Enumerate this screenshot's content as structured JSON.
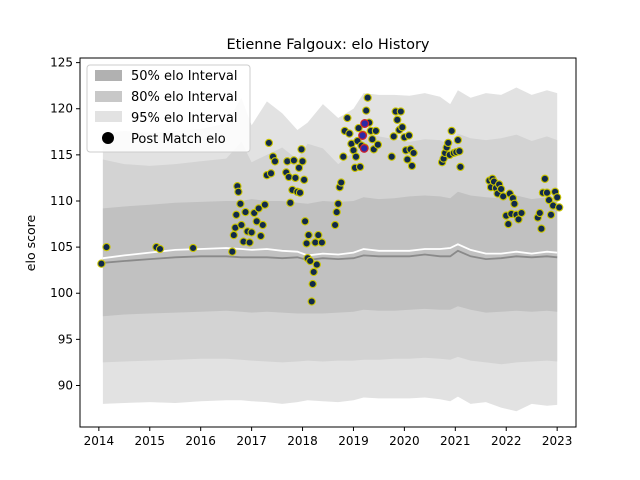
{
  "chart_data": {
    "type": "scatter",
    "title": "Etienne Falgoux: elo History",
    "xlabel": "",
    "ylabel": "elo score",
    "xlim": [
      2013.63,
      2023.37
    ],
    "ylim": [
      85.5,
      125.5
    ],
    "x_ticks": [
      2014,
      2015,
      2016,
      2017,
      2018,
      2019,
      2020,
      2021,
      2022,
      2023
    ],
    "y_ticks": [
      90,
      95,
      100,
      105,
      110,
      115,
      120,
      125
    ],
    "grid": false,
    "legend_position": "top-left",
    "legend": [
      {
        "label": "50% elo Interval",
        "swatch": "#b1b1b1"
      },
      {
        "label": "80% elo Interval",
        "swatch": "#c8c8c8"
      },
      {
        "label": "95% elo Interval",
        "swatch": "#e2e2e2"
      },
      {
        "label": "Post Match elo",
        "swatch": "#000000"
      }
    ],
    "colors": {
      "band95": "#e2e2e2",
      "band80": "#d3d3d3",
      "band50": "#c1c1c1",
      "median_line": "#8a8a8a",
      "mean_line": "#ffffff",
      "point_fill": "#112a4a",
      "point_edge": "#c9c400",
      "highlight_fill": "#2a2aa8",
      "highlight_edge": "#d0202a"
    },
    "bands": {
      "x": [
        2014.08,
        2014.5,
        2015.0,
        2015.5,
        2016.0,
        2016.5,
        2016.8,
        2017.0,
        2017.3,
        2017.6,
        2017.9,
        2018.1,
        2018.4,
        2018.7,
        2019.0,
        2019.2,
        2019.5,
        2019.8,
        2020.1,
        2020.4,
        2020.7,
        2020.9,
        2021.05,
        2021.3,
        2021.6,
        2021.9,
        2022.2,
        2022.5,
        2022.8,
        2023.0
      ],
      "p95_hi": [
        117.3,
        117.6,
        117.4,
        117.6,
        117.8,
        118.4,
        121.2,
        118.2,
        120.8,
        119.5,
        117.7,
        118.5,
        120.5,
        119.0,
        120.0,
        121.7,
        121.5,
        121.5,
        121.4,
        121.7,
        121.3,
        120.5,
        122.0,
        121.2,
        121.7,
        121.5,
        122.3,
        121.5,
        122.0,
        121.7
      ],
      "p80_hi": [
        114.5,
        114.0,
        113.8,
        114.0,
        114.3,
        114.6,
        116.4,
        114.2,
        115.0,
        115.8,
        114.5,
        116.2,
        115.7,
        114.0,
        115.3,
        117.4,
        117.0,
        116.7,
        116.4,
        116.7,
        116.6,
        116.0,
        117.3,
        116.8,
        116.6,
        116.8,
        117.2,
        116.5,
        117.0,
        116.6
      ],
      "p50_hi": [
        109.2,
        109.4,
        109.6,
        109.8,
        109.9,
        110.0,
        110.0,
        110.2,
        110.0,
        110.0,
        109.8,
        109.7,
        110.0,
        109.9,
        110.0,
        110.4,
        110.2,
        110.3,
        110.5,
        110.6,
        110.5,
        110.3,
        111.0,
        110.6,
        110.4,
        110.3,
        110.6,
        110.2,
        110.4,
        110.3
      ],
      "median": [
        103.3,
        103.5,
        103.7,
        103.9,
        104.0,
        104.0,
        103.9,
        103.9,
        103.9,
        103.8,
        103.9,
        103.6,
        103.8,
        103.7,
        103.8,
        104.1,
        104.0,
        104.0,
        104.0,
        104.2,
        104.0,
        104.0,
        104.6,
        104.0,
        103.7,
        103.8,
        104.0,
        103.9,
        104.0,
        103.9
      ],
      "mean": [
        103.8,
        104.1,
        104.4,
        104.7,
        104.8,
        104.9,
        104.8,
        104.7,
        104.8,
        104.6,
        104.5,
        104.1,
        104.3,
        104.2,
        104.4,
        104.8,
        104.6,
        104.6,
        104.6,
        104.8,
        104.8,
        104.9,
        105.3,
        104.7,
        104.3,
        104.3,
        104.5,
        104.3,
        104.5,
        104.4
      ],
      "p50_lo": [
        97.5,
        97.7,
        97.8,
        97.9,
        98.0,
        98.1,
        98.0,
        97.9,
        98.0,
        97.9,
        97.8,
        97.8,
        97.8,
        97.9,
        98.0,
        98.2,
        98.1,
        98.1,
        98.2,
        98.3,
        98.2,
        98.2,
        98.6,
        98.2,
        97.9,
        98.0,
        98.1,
        98.0,
        98.1,
        98.0
      ],
      "p80_lo": [
        92.5,
        92.6,
        92.7,
        92.8,
        92.9,
        92.9,
        92.8,
        92.7,
        92.6,
        92.5,
        92.6,
        92.7,
        92.6,
        92.7,
        92.7,
        92.8,
        92.8,
        92.9,
        92.9,
        93.0,
        92.9,
        92.8,
        93.1,
        92.7,
        92.5,
        92.3,
        92.5,
        92.6,
        92.7,
        92.6
      ],
      "p95_lo": [
        88.0,
        88.1,
        88.2,
        88.1,
        88.3,
        88.4,
        88.4,
        88.3,
        88.2,
        88.0,
        88.2,
        88.4,
        88.3,
        88.2,
        88.4,
        88.7,
        88.6,
        88.6,
        88.6,
        88.7,
        88.5,
        88.3,
        88.8,
        88.0,
        88.2,
        87.6,
        87.2,
        88.0,
        87.8,
        87.9
      ]
    },
    "points": [
      {
        "x": 2014.05,
        "y": 103.2
      },
      {
        "x": 2014.15,
        "y": 105.0
      },
      {
        "x": 2015.13,
        "y": 105.0
      },
      {
        "x": 2015.2,
        "y": 104.8
      },
      {
        "x": 2015.85,
        "y": 104.9
      },
      {
        "x": 2016.62,
        "y": 104.5
      },
      {
        "x": 2016.65,
        "y": 106.3
      },
      {
        "x": 2016.68,
        "y": 107.1
      },
      {
        "x": 2016.7,
        "y": 108.5
      },
      {
        "x": 2016.72,
        "y": 111.6
      },
      {
        "x": 2016.74,
        "y": 111.0
      },
      {
        "x": 2016.78,
        "y": 109.7
      },
      {
        "x": 2016.8,
        "y": 107.4
      },
      {
        "x": 2016.84,
        "y": 105.6
      },
      {
        "x": 2016.88,
        "y": 108.8
      },
      {
        "x": 2016.92,
        "y": 106.7
      },
      {
        "x": 2016.96,
        "y": 105.5
      },
      {
        "x": 2017.0,
        "y": 106.6
      },
      {
        "x": 2017.05,
        "y": 108.7
      },
      {
        "x": 2017.1,
        "y": 107.8
      },
      {
        "x": 2017.14,
        "y": 109.2
      },
      {
        "x": 2017.18,
        "y": 106.2
      },
      {
        "x": 2017.22,
        "y": 107.4
      },
      {
        "x": 2017.26,
        "y": 109.6
      },
      {
        "x": 2017.3,
        "y": 112.8
      },
      {
        "x": 2017.34,
        "y": 116.3
      },
      {
        "x": 2017.38,
        "y": 113.0
      },
      {
        "x": 2017.42,
        "y": 114.8
      },
      {
        "x": 2017.46,
        "y": 114.3
      },
      {
        "x": 2017.68,
        "y": 113.1
      },
      {
        "x": 2017.7,
        "y": 114.3
      },
      {
        "x": 2017.73,
        "y": 112.6
      },
      {
        "x": 2017.76,
        "y": 109.8
      },
      {
        "x": 2017.8,
        "y": 111.2
      },
      {
        "x": 2017.83,
        "y": 114.4
      },
      {
        "x": 2017.86,
        "y": 112.5
      },
      {
        "x": 2017.9,
        "y": 111.0
      },
      {
        "x": 2017.93,
        "y": 113.6
      },
      {
        "x": 2017.95,
        "y": 110.9
      },
      {
        "x": 2017.98,
        "y": 115.6
      },
      {
        "x": 2018.0,
        "y": 114.3
      },
      {
        "x": 2018.03,
        "y": 112.3
      },
      {
        "x": 2018.05,
        "y": 107.8
      },
      {
        "x": 2018.08,
        "y": 105.4
      },
      {
        "x": 2018.1,
        "y": 103.8
      },
      {
        "x": 2018.12,
        "y": 106.3
      },
      {
        "x": 2018.15,
        "y": 103.5
      },
      {
        "x": 2018.18,
        "y": 99.1
      },
      {
        "x": 2018.2,
        "y": 101.0
      },
      {
        "x": 2018.22,
        "y": 102.3
      },
      {
        "x": 2018.25,
        "y": 105.5
      },
      {
        "x": 2018.28,
        "y": 103.1
      },
      {
        "x": 2018.31,
        "y": 106.3
      },
      {
        "x": 2018.38,
        "y": 105.5
      },
      {
        "x": 2018.64,
        "y": 107.4
      },
      {
        "x": 2018.67,
        "y": 108.8
      },
      {
        "x": 2018.7,
        "y": 109.7
      },
      {
        "x": 2018.73,
        "y": 111.5
      },
      {
        "x": 2018.76,
        "y": 112.0
      },
      {
        "x": 2018.8,
        "y": 114.8
      },
      {
        "x": 2018.83,
        "y": 117.6
      },
      {
        "x": 2018.88,
        "y": 119.0
      },
      {
        "x": 2018.92,
        "y": 117.3
      },
      {
        "x": 2018.96,
        "y": 116.2
      },
      {
        "x": 2019.0,
        "y": 115.5
      },
      {
        "x": 2019.03,
        "y": 113.6
      },
      {
        "x": 2019.05,
        "y": 114.8
      },
      {
        "x": 2019.08,
        "y": 116.5
      },
      {
        "x": 2019.1,
        "y": 117.9
      },
      {
        "x": 2019.13,
        "y": 113.7
      },
      {
        "x": 2019.16,
        "y": 116.0
      },
      {
        "x": 2019.19,
        "y": 117.2
      },
      {
        "x": 2019.22,
        "y": 115.8
      },
      {
        "x": 2019.25,
        "y": 119.8
      },
      {
        "x": 2019.28,
        "y": 121.2
      },
      {
        "x": 2019.31,
        "y": 118.5
      },
      {
        "x": 2019.34,
        "y": 117.6
      },
      {
        "x": 2019.37,
        "y": 116.7
      },
      {
        "x": 2019.4,
        "y": 115.6
      },
      {
        "x": 2019.44,
        "y": 117.6
      },
      {
        "x": 2019.48,
        "y": 116.1
      },
      {
        "x": 2019.75,
        "y": 114.8
      },
      {
        "x": 2019.79,
        "y": 117.0
      },
      {
        "x": 2019.83,
        "y": 119.7
      },
      {
        "x": 2019.86,
        "y": 118.8
      },
      {
        "x": 2019.9,
        "y": 117.7
      },
      {
        "x": 2019.93,
        "y": 119.7
      },
      {
        "x": 2019.96,
        "y": 118.0
      },
      {
        "x": 2020.0,
        "y": 116.9
      },
      {
        "x": 2020.03,
        "y": 115.5
      },
      {
        "x": 2020.06,
        "y": 114.5
      },
      {
        "x": 2020.09,
        "y": 117.1
      },
      {
        "x": 2020.12,
        "y": 115.6
      },
      {
        "x": 2020.15,
        "y": 113.8
      },
      {
        "x": 2020.18,
        "y": 115.2
      },
      {
        "x": 2020.74,
        "y": 114.2
      },
      {
        "x": 2020.77,
        "y": 114.6
      },
      {
        "x": 2020.8,
        "y": 115.2
      },
      {
        "x": 2020.83,
        "y": 115.8
      },
      {
        "x": 2020.86,
        "y": 116.3
      },
      {
        "x": 2020.89,
        "y": 115.0
      },
      {
        "x": 2020.93,
        "y": 117.6
      },
      {
        "x": 2020.97,
        "y": 115.2
      },
      {
        "x": 2021.02,
        "y": 115.3
      },
      {
        "x": 2021.05,
        "y": 116.6
      },
      {
        "x": 2021.08,
        "y": 115.4
      },
      {
        "x": 2021.1,
        "y": 113.7
      },
      {
        "x": 2021.67,
        "y": 112.2
      },
      {
        "x": 2021.7,
        "y": 111.5
      },
      {
        "x": 2021.73,
        "y": 112.4
      },
      {
        "x": 2021.76,
        "y": 112.1
      },
      {
        "x": 2021.8,
        "y": 111.4
      },
      {
        "x": 2021.83,
        "y": 110.8
      },
      {
        "x": 2021.86,
        "y": 111.8
      },
      {
        "x": 2021.9,
        "y": 111.3
      },
      {
        "x": 2021.94,
        "y": 110.5
      },
      {
        "x": 2022.0,
        "y": 108.4
      },
      {
        "x": 2022.04,
        "y": 107.5
      },
      {
        "x": 2022.07,
        "y": 110.8
      },
      {
        "x": 2022.1,
        "y": 108.6
      },
      {
        "x": 2022.13,
        "y": 110.3
      },
      {
        "x": 2022.16,
        "y": 109.7
      },
      {
        "x": 2022.2,
        "y": 108.5
      },
      {
        "x": 2022.24,
        "y": 108.0
      },
      {
        "x": 2022.3,
        "y": 108.7
      },
      {
        "x": 2022.62,
        "y": 108.2
      },
      {
        "x": 2022.66,
        "y": 108.7
      },
      {
        "x": 2022.69,
        "y": 107.0
      },
      {
        "x": 2022.72,
        "y": 110.9
      },
      {
        "x": 2022.76,
        "y": 112.4
      },
      {
        "x": 2022.8,
        "y": 110.9
      },
      {
        "x": 2022.84,
        "y": 110.1
      },
      {
        "x": 2022.88,
        "y": 108.5
      },
      {
        "x": 2022.92,
        "y": 109.5
      },
      {
        "x": 2022.96,
        "y": 111.0
      },
      {
        "x": 2023.0,
        "y": 110.4
      },
      {
        "x": 2023.04,
        "y": 109.3
      }
    ],
    "highlight_points": [
      {
        "x": 2019.18,
        "y": 117.1
      },
      {
        "x": 2019.22,
        "y": 118.4
      },
      {
        "x": 2019.21,
        "y": 115.7
      }
    ]
  }
}
